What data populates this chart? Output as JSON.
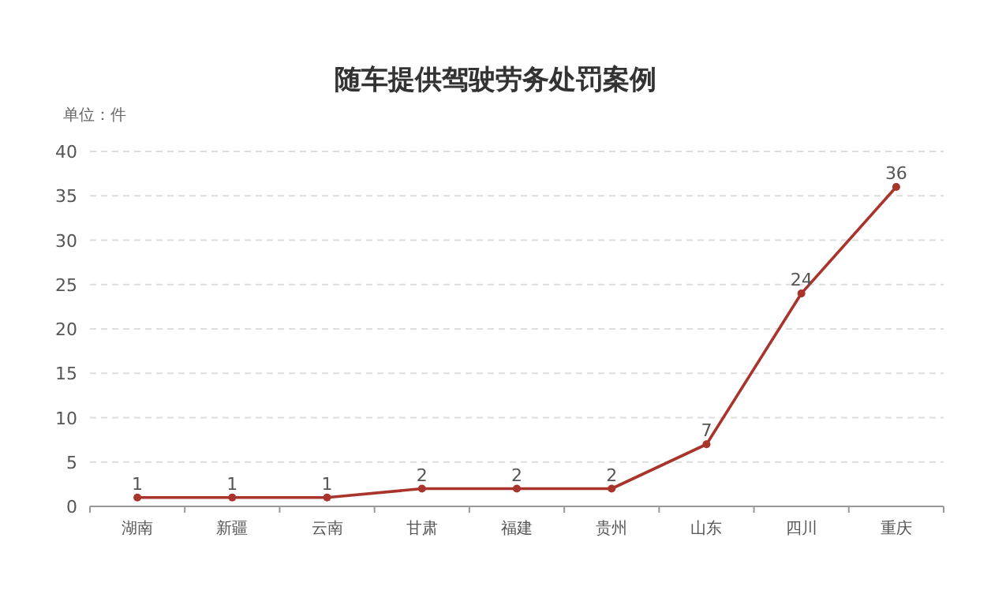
{
  "chart_data": {
    "type": "line",
    "title": "随车提供驾驶劳务处罚案例",
    "ylabel": "单位：件",
    "categories": [
      "湖南",
      "新疆",
      "云南",
      "甘肃",
      "福建",
      "贵州",
      "山东",
      "四川",
      "重庆"
    ],
    "series": [
      {
        "color": "#a8342c",
        "values": [
          1,
          1,
          1,
          2,
          2,
          2,
          7,
          24,
          36
        ]
      }
    ],
    "ylim": [
      0,
      40
    ],
    "yticks": [
      0,
      5,
      10,
      15,
      20,
      25,
      30,
      35,
      40
    ],
    "grid": "y",
    "marker": "circle",
    "line_style": "solid",
    "data_labels": true
  }
}
